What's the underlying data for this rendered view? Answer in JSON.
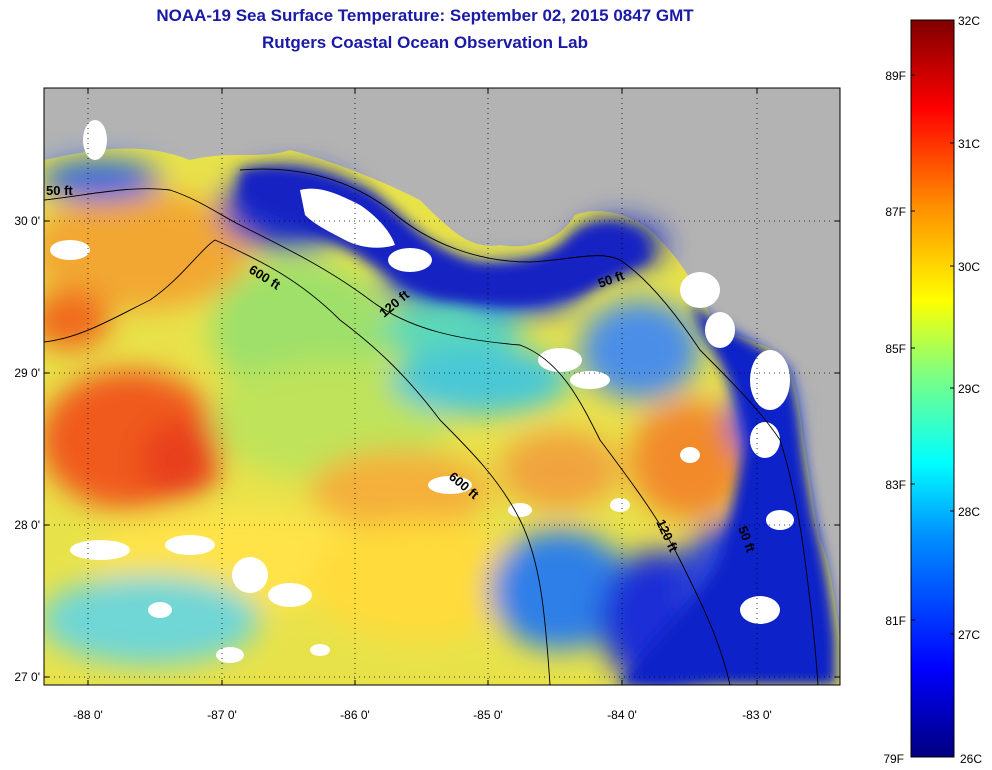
{
  "title": {
    "line1": "NOAA-19 Sea Surface Temperature:  September 02, 2015 0847 GMT",
    "line2": "Rutgers Coastal Ocean Observation Lab"
  },
  "map": {
    "lon_ticks": [
      "-88 0'",
      "-87 0'",
      "-86 0'",
      "-85 0'",
      "-84 0'",
      "-83 0'"
    ],
    "lat_ticks": [
      "30 0'",
      "29 0'",
      "28 0'",
      "27 0'"
    ],
    "contour_labels": [
      "600 ft",
      "120 ft",
      "600 ft",
      "120 ft",
      "50 ft",
      "50 ft",
      "50 ft"
    ],
    "colors": {
      "land": "#b3b3b3",
      "cloud": "#ffffff"
    }
  },
  "colorbar": {
    "celsius": [
      "32C",
      "31C",
      "30C",
      "29C",
      "28C",
      "27C",
      "26C"
    ],
    "fahrenheit": [
      "89F",
      "87F",
      "85F",
      "83F",
      "81F",
      "79F"
    ],
    "range_c": [
      26,
      32
    ]
  }
}
